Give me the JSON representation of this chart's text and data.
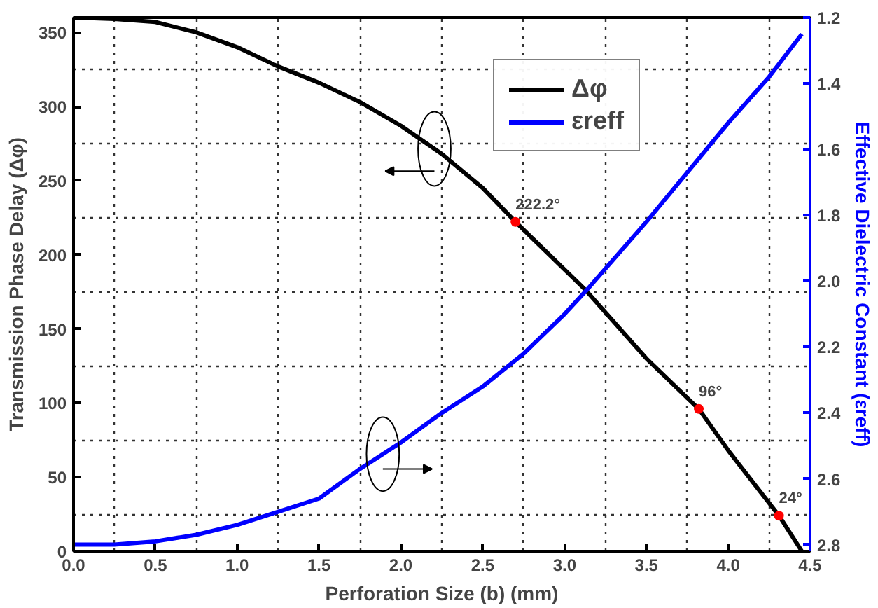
{
  "chart_data": {
    "type": "line",
    "xlabel": "Perforation Size (b) (mm)",
    "ylabel": "Transmission Phase Delay (Δφ)",
    "y2label": "Effective Dielectric Constant (εreff)",
    "series": [
      {
        "name": "Δφ",
        "color": "#000000",
        "x": [
          0,
          0.25,
          0.5,
          0.75,
          1.0,
          1.25,
          1.5,
          1.75,
          2.0,
          2.25,
          2.5,
          2.7,
          3.0,
          3.13,
          3.5,
          3.82,
          4.0,
          4.31,
          4.45
        ],
        "values": [
          360,
          359,
          357,
          350,
          340,
          327,
          316,
          303,
          287,
          268,
          245,
          222.2,
          190,
          176,
          130,
          96,
          68,
          24,
          0
        ]
      },
      {
        "name": "εreff",
        "color": "#0000ff",
        "axis": "y2",
        "x": [
          0,
          0.25,
          0.5,
          0.75,
          1.0,
          1.25,
          1.5,
          1.75,
          2.0,
          2.25,
          2.5,
          2.75,
          3.0,
          3.13,
          3.5,
          3.75,
          4.0,
          4.25,
          4.45
        ],
        "values": [
          2.8,
          2.8,
          2.79,
          2.77,
          2.74,
          2.7,
          2.66,
          2.57,
          2.49,
          2.4,
          2.32,
          2.22,
          2.1,
          2.03,
          1.82,
          1.67,
          1.52,
          1.38,
          1.25
        ]
      }
    ],
    "annotations": [
      {
        "text": "222.2°",
        "x": 2.7,
        "y": 222.2
      },
      {
        "text": "96°",
        "x": 3.82,
        "y": 96
      },
      {
        "text": "24°",
        "x": 4.31,
        "y": 24
      }
    ],
    "xlim": [
      0,
      4.5
    ],
    "xticks": [
      {
        "value": 0,
        "label": "0.0"
      },
      0.5,
      {
        "value": 1,
        "label": "1.0"
      },
      1.5,
      {
        "value": 2,
        "label": "2.0"
      },
      2.5,
      {
        "value": 3,
        "label": "3.0"
      },
      3.5,
      {
        "value": 4,
        "label": "4.0"
      },
      4.5
    ],
    "ylim": [
      0,
      360
    ],
    "yticks": [
      0,
      50,
      100,
      150,
      200,
      250,
      300,
      350
    ],
    "y2lim": [
      2.82,
      1.2
    ],
    "y2ticks": [
      1.2,
      1.4,
      1.6,
      1.8,
      {
        "value": 2,
        "label": "2.0"
      },
      2.2,
      2.4,
      2.6,
      2.8
    ],
    "grid": true,
    "legend": "top",
    "marker": "none",
    "line_style": "solid"
  }
}
